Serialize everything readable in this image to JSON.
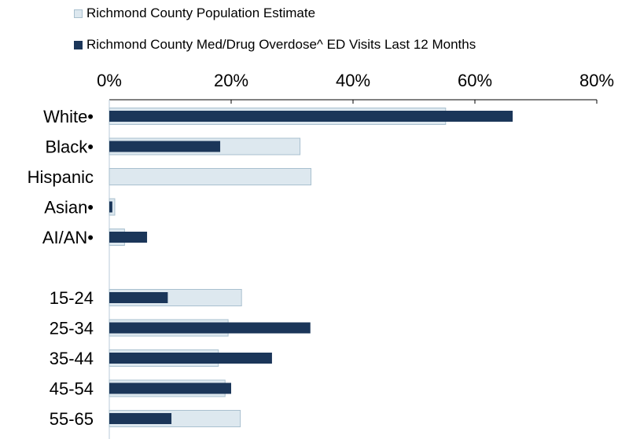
{
  "chart_data": {
    "type": "bar",
    "orientation": "horizontal",
    "categories": [
      "White•",
      "Black•",
      "Hispanic",
      "Asian•",
      "AI/AN•",
      "",
      "15-24",
      "25-34",
      "35-44",
      "45-54",
      "55-65"
    ],
    "series": [
      {
        "name": "Richmond County Population Estimate",
        "values": [
          55.2,
          31.3,
          33.1,
          0.9,
          2.5,
          null,
          21.7,
          19.5,
          17.9,
          19.0,
          21.5
        ]
      },
      {
        "name": "Richmond County Med/Drug Overdose^ ED Visits Last 12 Months",
        "values": [
          66.2,
          18.2,
          0,
          0.5,
          6.2,
          null,
          9.6,
          33.0,
          26.7,
          20.0,
          10.2
        ]
      }
    ],
    "xlim": [
      0,
      80
    ],
    "xticks": [
      "0%",
      "20%",
      "40%",
      "60%",
      "80%"
    ],
    "tick_values": [
      0,
      20,
      40,
      60,
      80
    ],
    "axis_position": "top",
    "legend_placement": "top",
    "colors": {
      "population_fill": "#dde8ef",
      "population_border": "#a9c0cf",
      "ed_visits_fill": "#1b3659",
      "axis": "#000000"
    }
  }
}
